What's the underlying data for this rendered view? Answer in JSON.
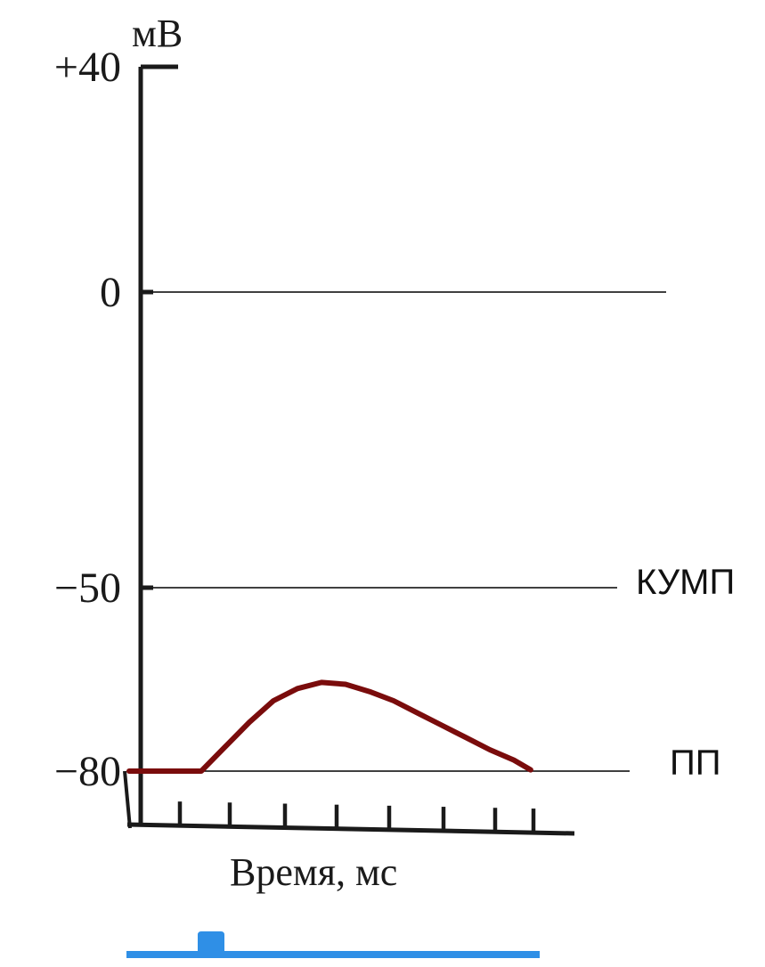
{
  "chart_data": {
    "type": "line",
    "ylabel": "мВ",
    "xlabel": "Время, мс",
    "ylim": [
      -80,
      40
    ],
    "yticks": [
      "+40",
      "0",
      "−50",
      "−80"
    ],
    "ytick_values": [
      40,
      0,
      -50,
      -80
    ],
    "x_tick_count": 8,
    "reference_lines": [
      {
        "value": 0,
        "label": ""
      },
      {
        "value": -50,
        "label": "КУМП"
      },
      {
        "value": -80,
        "label": "ПП"
      }
    ],
    "series": [
      {
        "color": "#7a0c0c",
        "points": [
          [
            0,
            -80
          ],
          [
            1.5,
            -80
          ],
          [
            2.0,
            -76
          ],
          [
            2.5,
            -72
          ],
          [
            3.0,
            -68.5
          ],
          [
            3.5,
            -66.5
          ],
          [
            4.0,
            -65.5
          ],
          [
            4.5,
            -65.8
          ],
          [
            5.0,
            -67
          ],
          [
            5.5,
            -68.5
          ],
          [
            6.0,
            -70.5
          ],
          [
            6.5,
            -72.5
          ],
          [
            7.0,
            -74.5
          ],
          [
            7.5,
            -76.5
          ],
          [
            8.0,
            -78.2
          ],
          [
            8.35,
            -79.8
          ]
        ]
      }
    ],
    "stimulus_color": "#2f8fe6"
  }
}
